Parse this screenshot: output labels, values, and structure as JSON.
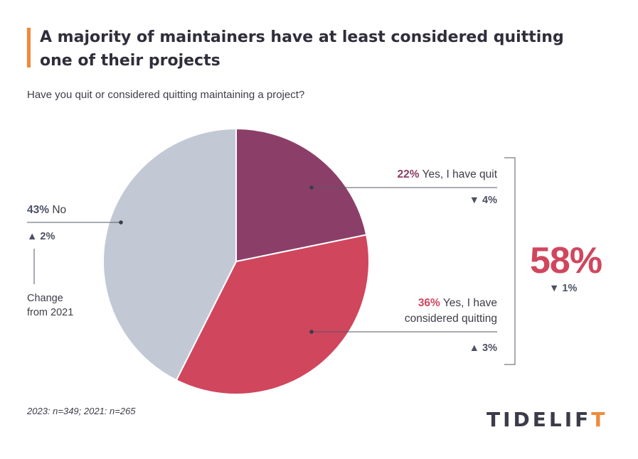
{
  "title": "A majority of maintainers have at least considered quitting one of their projects",
  "subtitle": "Have you quit or considered quitting maintaining a project?",
  "chart_data": {
    "type": "pie",
    "slices": [
      {
        "pct_label": "22%",
        "label": "Yes, I have quit",
        "value": 22,
        "color": "#8b3f68",
        "change": "4%",
        "change_dir": "down"
      },
      {
        "pct_label": "36%",
        "label": "Yes, I have considered quitting",
        "label_line1": "Yes, I have",
        "label_line2": "considered quitting",
        "value": 36,
        "color": "#d0465d",
        "change": "3%",
        "change_dir": "up"
      },
      {
        "pct_label": "43%",
        "label": "No",
        "value": 43,
        "color": "#c2c9d5",
        "change": "2%",
        "change_dir": "up"
      }
    ],
    "annotation": {
      "line1": "Change",
      "line2": "from 2021"
    },
    "total": {
      "value": "58%",
      "change": "1%",
      "change_dir": "down"
    }
  },
  "footnote": "2023: n=349; 2021: n=265",
  "logo": {
    "prefix": "TIDELIF",
    "suffix": "T"
  },
  "glyphs": {
    "up": "▲",
    "down": "▼"
  }
}
